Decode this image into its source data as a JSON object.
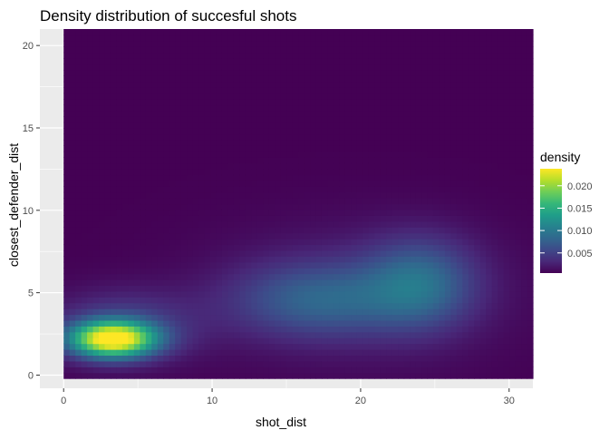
{
  "chart_data": {
    "type": "heatmap",
    "title": "Density distribution of succesful shots",
    "xlabel": "shot_dist",
    "ylabel": "closest_defender_dist",
    "xlim": [
      -1.6,
      31.6
    ],
    "ylim": [
      -0.8,
      21
    ],
    "x_ticks": [
      0,
      10,
      20,
      30
    ],
    "x_tick_labels": [
      "0",
      "10",
      "20",
      "30"
    ],
    "y_ticks": [
      0,
      5,
      10,
      15,
      20
    ],
    "y_tick_labels": [
      "0",
      "5",
      "10",
      "15",
      "20"
    ],
    "fill_extent": {
      "x": [
        0,
        31.6
      ],
      "y": [
        -0.2,
        21
      ]
    },
    "density_peaks": [
      {
        "x": 3.3,
        "y": 2.2,
        "density": 0.0235
      },
      {
        "x": 17,
        "y": 4.6,
        "density": 0.0075
      },
      {
        "x": 24,
        "y": 5.6,
        "density": 0.0085
      }
    ],
    "legend": {
      "title": "density",
      "position": "right",
      "range": [
        0.0005,
        0.0238
      ],
      "ticks": [
        0.005,
        0.01,
        0.015,
        0.02
      ],
      "tick_labels": [
        "0.005",
        "0.010",
        "0.015",
        "0.020"
      ],
      "colorscale": "viridis"
    },
    "grid": true,
    "panel_background": "#ebebeb",
    "grid_color": "#ffffff"
  }
}
